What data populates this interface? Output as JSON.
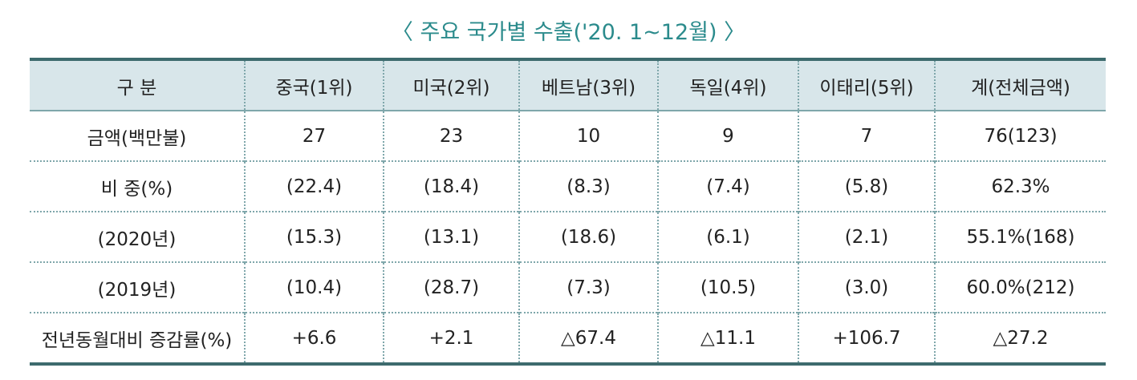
{
  "title": "〈 주요 국가별 수출('20. 1~12월) 〉",
  "table": {
    "header": [
      "구 분",
      "중국(1위)",
      "미국(2위)",
      "베트남(3위)",
      "독일(4위)",
      "이태리(5위)",
      "계(전체금액)"
    ],
    "rows": [
      [
        "금액(백만불)",
        "27",
        "23",
        "10",
        "9",
        "7",
        "76(123)"
      ],
      [
        "비 중(%)",
        "(22.4)",
        "(18.4)",
        "(8.3)",
        "(7.4)",
        "(5.8)",
        "62.3%"
      ],
      [
        "(2020년)",
        "(15.3)",
        "(13.1)",
        "(18.6)",
        "(6.1)",
        "(2.1)",
        "55.1%(168)"
      ],
      [
        "(2019년)",
        "(10.4)",
        "(28.7)",
        "(7.3)",
        "(10.5)",
        "(3.0)",
        "60.0%(212)"
      ],
      [
        "전년동월대비 증감률(%)",
        "+6.6",
        "+2.1",
        "△67.4",
        "△11.1",
        "+106.7",
        "△27.2"
      ]
    ]
  }
}
